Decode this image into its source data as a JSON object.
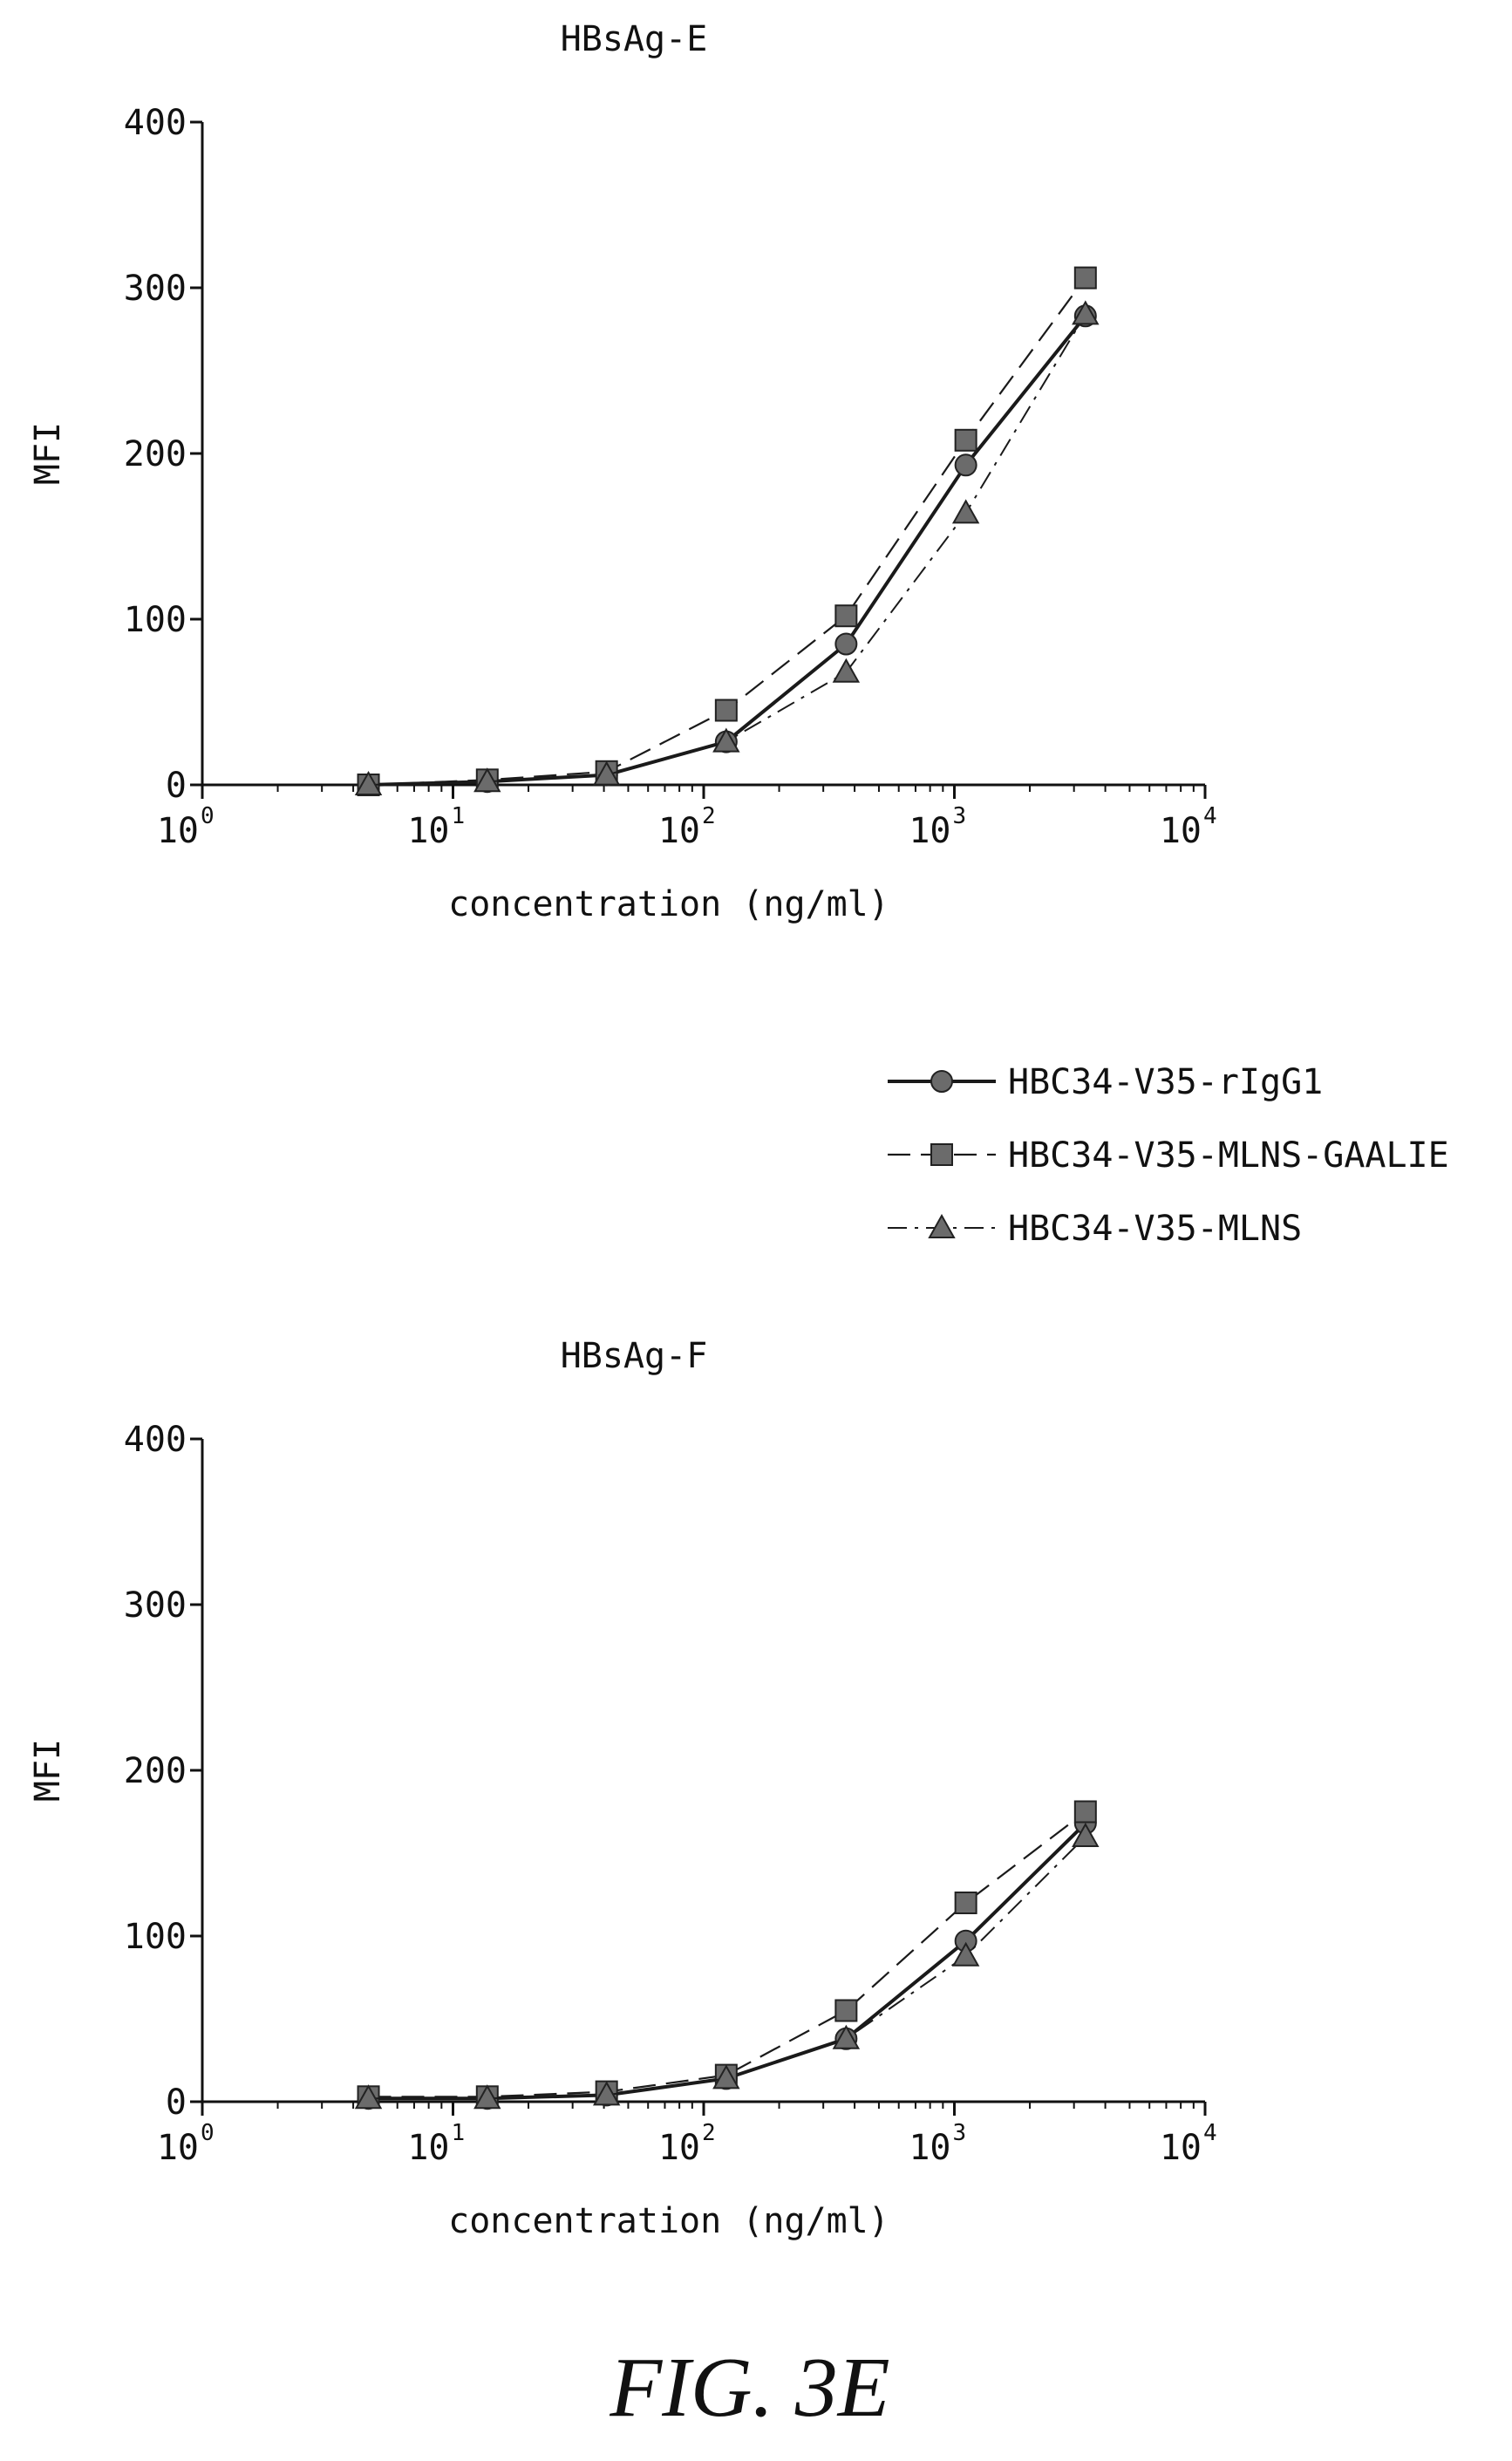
{
  "figure_label": "FIG. 3E",
  "legend": {
    "placement": "between-charts-right",
    "entries": [
      "HBC34-V35-rIgG1",
      "HBC34-V35-MLNS-GAALIE",
      "HBC34-V35-MLNS"
    ]
  },
  "styles": {
    "line_color": "#1a1a1a",
    "marker_fill": "#6b6b6b",
    "markers": [
      "circle",
      "square",
      "triangle"
    ],
    "dashes": [
      "solid",
      "long-dash",
      "dash-dot"
    ]
  },
  "chart_data": [
    {
      "type": "scatter",
      "title": "HBsAg-E",
      "xlabel": "concentration (ng/ml)",
      "ylabel": "MFI",
      "xscale": "log",
      "xlim": [
        1,
        10000
      ],
      "ylim": [
        0,
        400
      ],
      "yticks": [
        0,
        100,
        200,
        300,
        400
      ],
      "xtick_base": "10",
      "xtick_exponents": [
        "0",
        "1",
        "2",
        "3",
        "4"
      ],
      "grid": false,
      "series": [
        {
          "name": "HBC34-V35-rIgG1",
          "x": [
            4.6,
            13.7,
            41,
            123,
            370,
            1111,
            3333
          ],
          "y": [
            0,
            2,
            6,
            26,
            85,
            193,
            283
          ]
        },
        {
          "name": "HBC34-V35-MLNS-GAALIE",
          "x": [
            4.6,
            13.7,
            41,
            123,
            370,
            1111,
            3333
          ],
          "y": [
            0,
            3,
            8,
            45,
            102,
            208,
            306
          ]
        },
        {
          "name": "HBC34-V35-MLNS",
          "x": [
            4.6,
            13.7,
            41,
            123,
            370,
            1111,
            3333
          ],
          "y": [
            0,
            2,
            6,
            26,
            68,
            164,
            284
          ]
        }
      ]
    },
    {
      "type": "scatter",
      "title": "HBsAg-F",
      "xlabel": "concentration (ng/ml)",
      "ylabel": "MFI",
      "xscale": "log",
      "xlim": [
        1,
        10000
      ],
      "ylim": [
        0,
        400
      ],
      "yticks": [
        0,
        100,
        200,
        300,
        400
      ],
      "xtick_base": "10",
      "xtick_exponents": [
        "0",
        "1",
        "2",
        "3",
        "4"
      ],
      "grid": false,
      "series": [
        {
          "name": "HBC34-V35-rIgG1",
          "x": [
            4.6,
            13.7,
            41,
            123,
            370,
            1111,
            3333
          ],
          "y": [
            2,
            2,
            4,
            14,
            38,
            97,
            168
          ]
        },
        {
          "name": "HBC34-V35-MLNS-GAALIE",
          "x": [
            4.6,
            13.7,
            41,
            123,
            370,
            1111,
            3333
          ],
          "y": [
            3,
            3,
            6,
            16,
            55,
            120,
            175
          ]
        },
        {
          "name": "HBC34-V35-MLNS",
          "x": [
            4.6,
            13.7,
            41,
            123,
            370,
            1111,
            3333
          ],
          "y": [
            2,
            2,
            4,
            14,
            38,
            88,
            160
          ]
        }
      ]
    }
  ]
}
